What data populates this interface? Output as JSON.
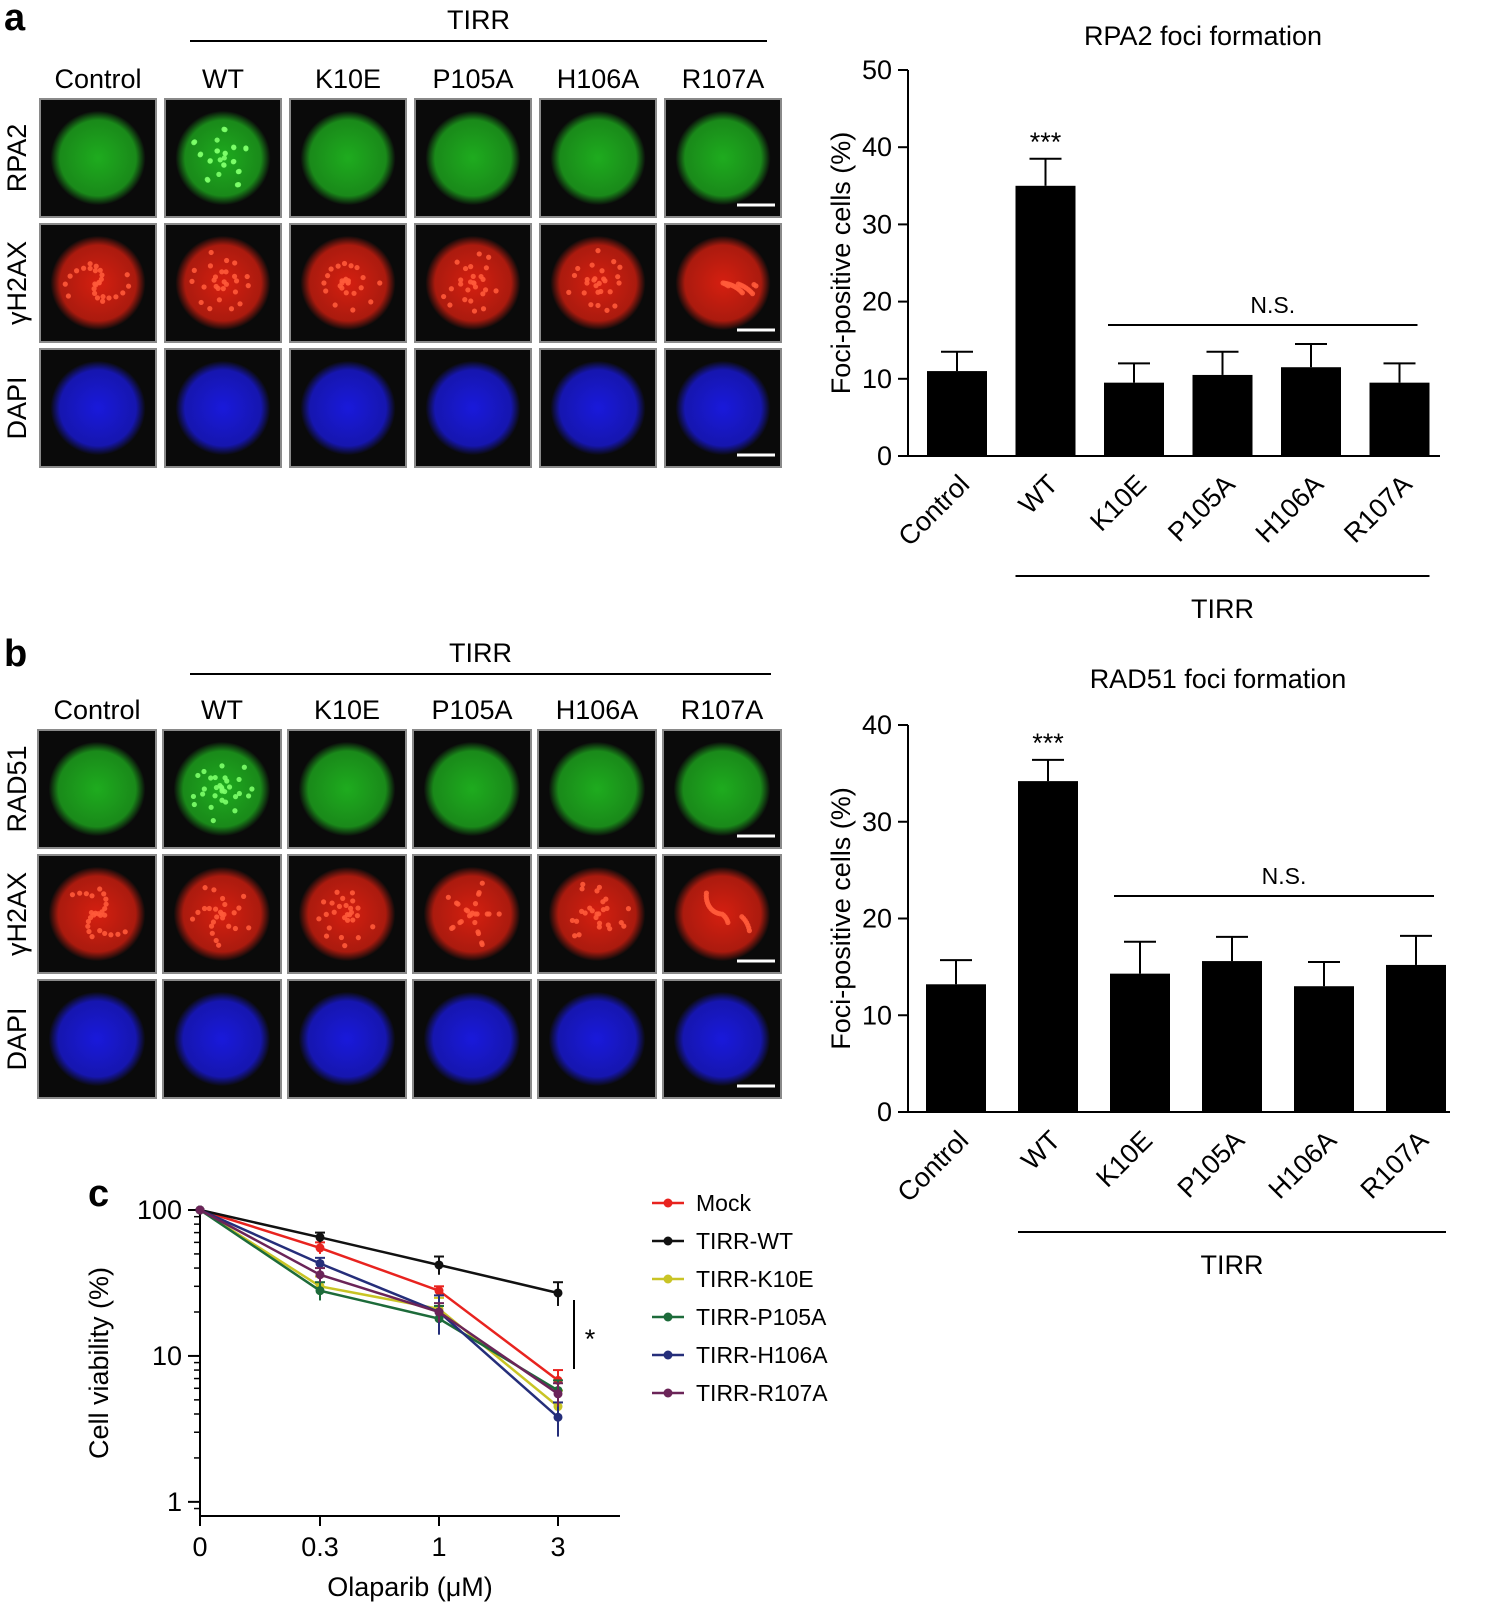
{
  "figure": {
    "panels": {
      "a": "a",
      "b": "b",
      "c": "c"
    },
    "micrographs": [
      {
        "group_label": "TIRR",
        "columns": [
          "Control",
          "WT",
          "K10E",
          "P105A",
          "H106A",
          "R107A"
        ],
        "rows": [
          {
            "label": "RPA2",
            "color": "#1fb41f"
          },
          {
            "label": "γH2AX",
            "color": "#e02010"
          },
          {
            "label": "DAPI",
            "color": "#1a1ae6"
          }
        ]
      },
      {
        "group_label": "TIRR",
        "columns": [
          "Control",
          "WT",
          "K10E",
          "P105A",
          "H106A",
          "R107A"
        ],
        "rows": [
          {
            "label": "RAD51",
            "color": "#1fb41f"
          },
          {
            "label": "γH2AX",
            "color": "#e02010"
          },
          {
            "label": "DAPI",
            "color": "#1a1ae6"
          }
        ]
      }
    ]
  },
  "chart_data": [
    {
      "type": "bar",
      "title": "RPA2 foci formation",
      "ylabel": "Foci-positive cells (%)",
      "xlabel": "",
      "group_label": "TIRR",
      "categories": [
        "Control",
        "WT",
        "K10E",
        "P105A",
        "H106A",
        "R107A"
      ],
      "values": [
        11.0,
        35.0,
        9.5,
        10.5,
        11.5,
        9.5
      ],
      "errors": [
        2.5,
        3.5,
        2.5,
        3.0,
        3.0,
        2.5
      ],
      "ylim": [
        0,
        50
      ],
      "yticks": [
        0,
        10,
        20,
        30,
        40,
        50
      ],
      "annotations": [
        {
          "text": "***",
          "target": "WT"
        },
        {
          "text": "N.S.",
          "target": "K10E–R107A"
        }
      ],
      "bar_color": "#000000"
    },
    {
      "type": "bar",
      "title": "RAD51 foci formation",
      "ylabel": "Foci-positive cells (%)",
      "xlabel": "",
      "group_label": "TIRR",
      "categories": [
        "Control",
        "WT",
        "K10E",
        "P105A",
        "H106A",
        "R107A"
      ],
      "values": [
        13.2,
        34.2,
        14.3,
        15.6,
        13.0,
        15.2
      ],
      "errors": [
        2.5,
        2.2,
        3.3,
        2.5,
        2.5,
        3.0
      ],
      "ylim": [
        0,
        40
      ],
      "yticks": [
        0,
        10,
        20,
        30,
        40
      ],
      "annotations": [
        {
          "text": "***",
          "target": "WT"
        },
        {
          "text": "N.S.",
          "target": "K10E–R107A"
        }
      ],
      "bar_color": "#000000"
    },
    {
      "type": "line",
      "xlabel": "Olaparib (μM)",
      "ylabel": "Cell viability (%)",
      "yscale": "log",
      "ylim": [
        0.8,
        100
      ],
      "yticks": [
        1,
        10,
        100
      ],
      "x": [
        "0",
        "0.3",
        "1",
        "3"
      ],
      "legend_position": "right",
      "series": [
        {
          "name": "Mock",
          "color": "#e8231f",
          "values": [
            100,
            55,
            28,
            6.8
          ],
          "errors": [
            0,
            5,
            2,
            1.2
          ]
        },
        {
          "name": "TIRR-WT",
          "color": "#111111",
          "values": [
            100,
            65,
            42,
            27
          ],
          "errors": [
            0,
            5,
            6,
            5
          ]
        },
        {
          "name": "TIRR-K10E",
          "color": "#c9c425",
          "values": [
            100,
            30,
            21,
            4.5
          ],
          "errors": [
            0,
            5,
            4,
            1.3
          ]
        },
        {
          "name": "TIRR-P105A",
          "color": "#1d6b3a",
          "values": [
            100,
            28,
            18,
            5.8
          ],
          "errors": [
            0,
            4,
            4,
            1
          ]
        },
        {
          "name": "TIRR-H106A",
          "color": "#252e7a",
          "values": [
            100,
            43,
            20,
            3.8
          ],
          "errors": [
            0,
            4,
            6,
            1
          ]
        },
        {
          "name": "TIRR-R107A",
          "color": "#6b2458",
          "values": [
            100,
            36,
            20,
            5.5
          ],
          "errors": [
            0,
            4,
            3,
            1
          ]
        }
      ],
      "annotations": [
        {
          "text": "*"
        }
      ]
    }
  ]
}
